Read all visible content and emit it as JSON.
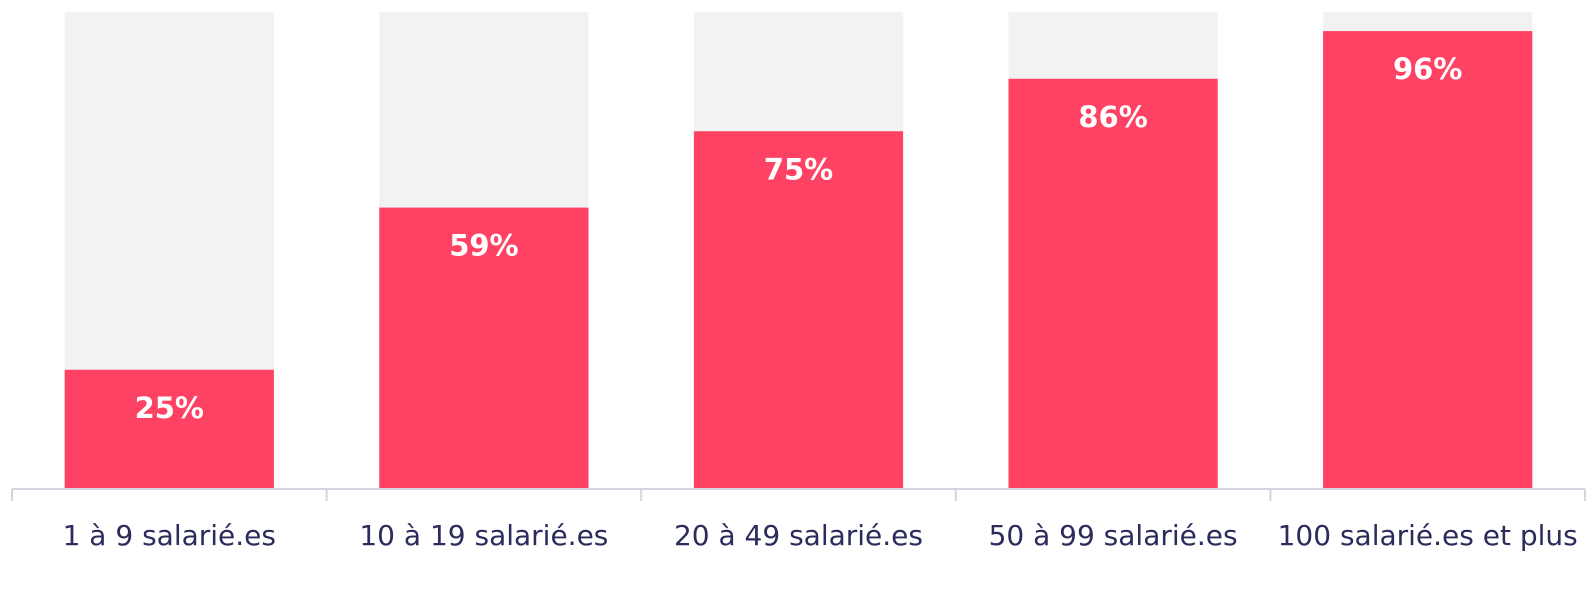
{
  "chart_data": {
    "type": "bar",
    "categories": [
      "1 à 9 salarié.es",
      "10 à 19 salarié.es",
      "20 à 49 salarié.es",
      "50 à 99 salarié.es",
      "100 salarié.es et plus"
    ],
    "values": [
      25,
      59,
      75,
      86,
      96
    ],
    "value_labels": [
      "25%",
      "59%",
      "75%",
      "86%",
      "96%"
    ],
    "color": "#ff4264",
    "track_color": "#f2f2f2",
    "ylim": [
      0,
      100
    ]
  }
}
